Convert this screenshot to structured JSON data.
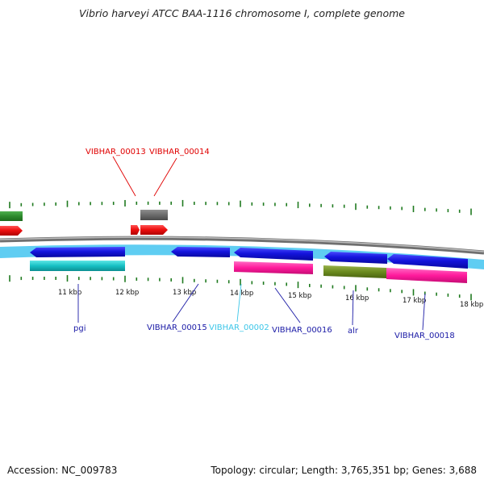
{
  "title": "Vibrio harveyi ATCC BAA-1116 chromosome I, complete genome",
  "footer": {
    "accession": "Accession: NC_009783",
    "summary": "Topology: circular; Length: 3,765,351 bp; Genes: 3,688"
  },
  "ticks": [
    {
      "label": "11 kbp"
    },
    {
      "label": "12 kbp"
    },
    {
      "label": "13 kbp"
    },
    {
      "label": "14 kbp"
    },
    {
      "label": "15 kbp"
    },
    {
      "label": "16 kbp"
    },
    {
      "label": "17 kbp"
    },
    {
      "label": "18 kbp"
    }
  ],
  "gene_labels": [
    {
      "text": "VIBHAR_00013",
      "color": "#e00000"
    },
    {
      "text": "VIBHAR_00014",
      "color": "#e00000"
    },
    {
      "text": "pgi",
      "color": "#1a1aa6"
    },
    {
      "text": "VIBHAR_00015",
      "color": "#1a1aa6"
    },
    {
      "text": "VIBHAR_00002",
      "color": "#3cc6e8"
    },
    {
      "text": "VIBHAR_00016",
      "color": "#1a1aa6"
    },
    {
      "text": "alr",
      "color": "#1a1aa6"
    },
    {
      "text": "VIBHAR_00018",
      "color": "#1a1aa6"
    }
  ],
  "colors": {
    "forward_cds": "#ee1111",
    "reverse_cds": "#1414dd",
    "reverse_strand_band": "#5fcdf2",
    "rRNA_like": "#6a8a1e",
    "misc_feature": "#ff1a9c",
    "gene_track": "#16c0c4",
    "dark_green_feature": "#2d8a2d",
    "gray_feature": "#6b6b6b",
    "backbone": "#8a8a8a",
    "tick_marks": "#1f7a1f"
  }
}
